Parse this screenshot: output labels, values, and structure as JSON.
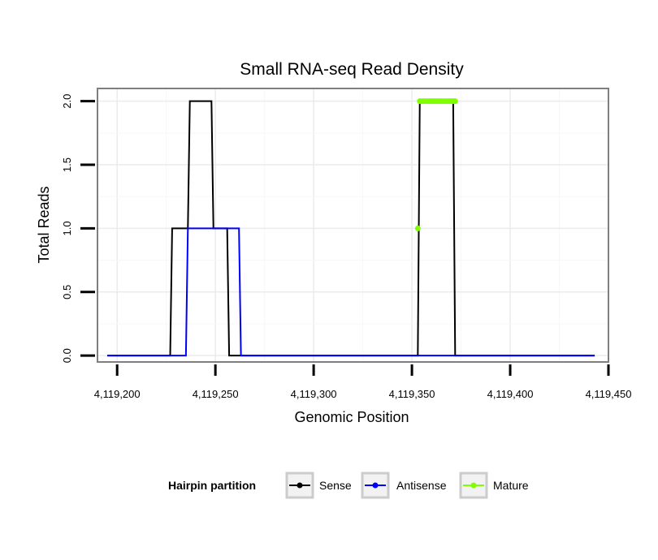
{
  "chart_data": {
    "type": "line",
    "title": "Small RNA-seq Read Density",
    "xlabel": "Genomic Position",
    "ylabel": "Total Reads",
    "xlim": [
      4119190,
      4119450
    ],
    "ylim": [
      -0.05,
      2.1
    ],
    "x_ticks": [
      4119200,
      4119250,
      4119300,
      4119350,
      4119400,
      4119450
    ],
    "x_tick_labels": [
      "4,119,200",
      "4,119,250",
      "4,119,300",
      "4,119,350",
      "4,119,400",
      "4,119,450"
    ],
    "y_ticks": [
      0,
      0.5,
      1,
      1.5,
      2
    ],
    "y_tick_labels": [
      "0.0",
      "0.5",
      "1.0",
      "1.5",
      "2.0"
    ],
    "grid": true,
    "legend": {
      "title": "Hairpin partition",
      "position": "bottom",
      "entries": [
        {
          "label": "Sense",
          "color": "#000000"
        },
        {
          "label": "Antisense",
          "color": "#0000ff"
        },
        {
          "label": "Mature",
          "color": "#7fff00"
        }
      ]
    },
    "series": [
      {
        "name": "Sense",
        "color": "#000000",
        "style": "line",
        "x": [
          4119195,
          4119227,
          4119228,
          4119236,
          4119237,
          4119248,
          4119249,
          4119256,
          4119257,
          4119353,
          4119354,
          4119371,
          4119372,
          4119443
        ],
        "y": [
          0,
          0,
          1,
          1,
          2,
          2,
          1,
          1,
          0,
          0,
          2,
          2,
          0,
          0
        ]
      },
      {
        "name": "Antisense",
        "color": "#0000ff",
        "style": "line",
        "x": [
          4119195,
          4119235,
          4119236,
          4119262,
          4119263,
          4119443
        ],
        "y": [
          0,
          0,
          1,
          1,
          0,
          0
        ]
      },
      {
        "name": "Mature",
        "color": "#7fff00",
        "style": "points",
        "x": [
          4119353,
          4119354,
          4119355,
          4119356,
          4119357,
          4119358,
          4119359,
          4119360,
          4119361,
          4119362,
          4119363,
          4119364,
          4119365,
          4119366,
          4119367,
          4119368,
          4119369,
          4119370,
          4119371,
          4119372
        ],
        "y": [
          1,
          2,
          2,
          2,
          2,
          2,
          2,
          2,
          2,
          2,
          2,
          2,
          2,
          2,
          2,
          2,
          2,
          2,
          2,
          2
        ]
      }
    ]
  }
}
